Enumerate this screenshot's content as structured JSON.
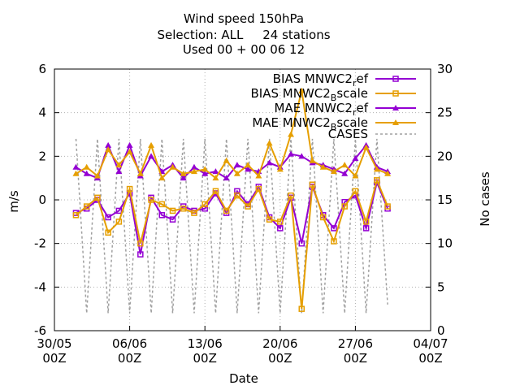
{
  "chart_data": {
    "type": "line",
    "title_lines": [
      "Wind speed 150hPa",
      "Selection: ALL     24 stations",
      "Used 00 + 00 06 12"
    ],
    "xlabel": "Date",
    "ylabel": "m/s",
    "y2label": "No cases",
    "xlim_days": [
      0,
      35
    ],
    "ylim": [
      -6,
      6
    ],
    "y2lim": [
      0,
      30
    ],
    "x_ticks": [
      {
        "day": 0,
        "l1": "30/05",
        "l2": "00Z"
      },
      {
        "day": 7,
        "l1": "06/06",
        "l2": "00Z"
      },
      {
        "day": 14,
        "l1": "13/06",
        "l2": "00Z"
      },
      {
        "day": 21,
        "l1": "20/06",
        "l2": "00Z"
      },
      {
        "day": 28,
        "l1": "27/06",
        "l2": "00Z"
      },
      {
        "day": 35,
        "l1": "04/07",
        "l2": "00Z"
      }
    ],
    "y_ticks": [
      "-6",
      "-4",
      "-2",
      "0",
      "2",
      "4",
      "6"
    ],
    "y2_ticks": [
      "0",
      "5",
      "10",
      "15",
      "20",
      "25",
      "30"
    ],
    "legend_position": "top-right",
    "grid": true,
    "series": [
      {
        "name": "BIAS MNWC2_ref",
        "label_main": "BIAS MNWC2",
        "label_sub": "r",
        "label_tail": "ef",
        "color": "#9400d3",
        "marker": "square",
        "x": [
          2,
          3,
          4,
          5,
          6,
          7,
          8,
          9,
          10,
          11,
          12,
          13,
          14,
          15,
          16,
          17,
          18,
          19,
          20,
          21,
          22,
          23,
          24,
          25,
          26,
          27,
          28,
          29,
          30,
          31
        ],
        "y": [
          -0.6,
          -0.4,
          0.0,
          -0.8,
          -0.5,
          0.3,
          -2.5,
          0.1,
          -0.7,
          -0.9,
          -0.3,
          -0.5,
          -0.4,
          0.3,
          -0.6,
          0.4,
          -0.2,
          0.6,
          -0.8,
          -1.3,
          0.1,
          -2.0,
          0.6,
          -0.7,
          -1.3,
          -0.1,
          0.2,
          -1.3,
          0.8,
          -0.4
        ]
      },
      {
        "name": "BIAS MNWC2_Bscale",
        "label_main": "BIAS MNWC2",
        "label_sub": "B",
        "label_tail": "scale",
        "color": "#e69f00",
        "marker": "square",
        "x": [
          2,
          3,
          4,
          5,
          6,
          7,
          8,
          9,
          10,
          11,
          12,
          13,
          14,
          15,
          16,
          17,
          18,
          19,
          20,
          21,
          22,
          23,
          24,
          25,
          26,
          27,
          28,
          29,
          30,
          31
        ],
        "y": [
          -0.7,
          -0.3,
          0.1,
          -1.5,
          -1.0,
          0.5,
          -2.0,
          0.0,
          -0.2,
          -0.5,
          -0.4,
          -0.6,
          -0.2,
          0.4,
          -0.5,
          0.2,
          -0.3,
          0.5,
          -0.9,
          -1.0,
          0.2,
          -5.0,
          0.7,
          -0.8,
          -1.9,
          -0.3,
          0.4,
          -1.0,
          0.9,
          -0.3
        ]
      },
      {
        "name": "MAE MNWC2_ref",
        "label_main": "MAE MNWC2",
        "label_sub": "r",
        "label_tail": "ef",
        "color": "#9400d3",
        "marker": "triangle",
        "x": [
          2,
          3,
          4,
          5,
          6,
          7,
          8,
          9,
          10,
          11,
          12,
          13,
          14,
          15,
          16,
          17,
          18,
          19,
          20,
          21,
          22,
          23,
          24,
          25,
          26,
          27,
          28,
          29,
          30,
          31
        ],
        "y": [
          1.5,
          1.2,
          1.0,
          2.5,
          1.3,
          2.5,
          1.1,
          2.0,
          1.3,
          1.6,
          1.0,
          1.5,
          1.2,
          1.3,
          1.0,
          1.6,
          1.4,
          1.3,
          1.7,
          1.5,
          2.1,
          2.0,
          1.7,
          1.6,
          1.4,
          1.2,
          1.9,
          2.5,
          1.5,
          1.3
        ]
      },
      {
        "name": "MAE MNWC2_Bscale",
        "label_main": "MAE MNWC2",
        "label_sub": "B",
        "label_tail": "scale",
        "color": "#e69f00",
        "marker": "triangle",
        "x": [
          2,
          3,
          4,
          5,
          6,
          7,
          8,
          9,
          10,
          11,
          12,
          13,
          14,
          15,
          16,
          17,
          18,
          19,
          20,
          21,
          22,
          23,
          24,
          25,
          26,
          27,
          28,
          29,
          30,
          31
        ],
        "y": [
          1.2,
          1.5,
          1.1,
          2.3,
          1.6,
          2.2,
          1.2,
          2.5,
          1.0,
          1.5,
          1.2,
          1.3,
          1.4,
          1.0,
          1.8,
          1.2,
          1.6,
          1.1,
          2.6,
          1.4,
          3.0,
          5.0,
          1.8,
          1.5,
          1.3,
          1.6,
          1.1,
          2.4,
          1.4,
          1.2
        ]
      },
      {
        "name": "CASES",
        "label_main": "CASES",
        "label_sub": "",
        "label_tail": "",
        "color": "#a0a0a0",
        "marker": "none",
        "x": [
          2,
          3,
          4,
          5,
          6,
          7,
          8,
          9,
          10,
          11,
          12,
          13,
          14,
          15,
          16,
          17,
          18,
          19,
          20,
          21,
          22,
          23,
          24,
          25,
          26,
          27,
          28,
          29,
          30,
          31
        ],
        "y": [
          22,
          2,
          22,
          2,
          22,
          2,
          22,
          2,
          22,
          2,
          22,
          2,
          22,
          2,
          22,
          2,
          22,
          2,
          22,
          2,
          22,
          2,
          22,
          2,
          22,
          2,
          22,
          2,
          22,
          3
        ]
      }
    ]
  }
}
